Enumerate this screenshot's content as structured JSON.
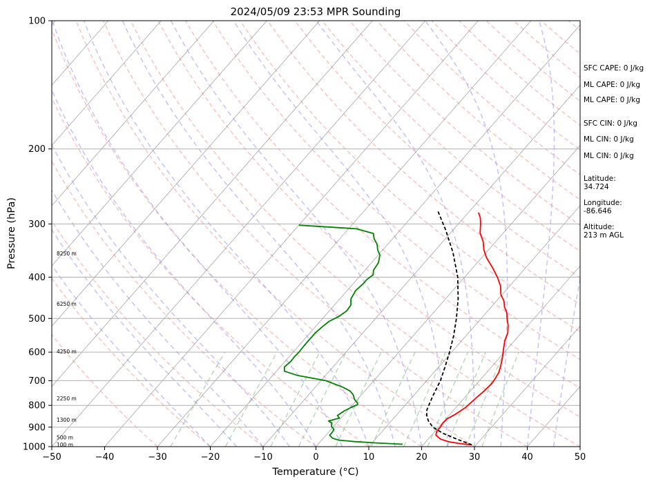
{
  "chart_data": {
    "type": "line",
    "title": "2024/05/09 23:53 MPR Sounding",
    "xlabel": "Temperature (°C)",
    "ylabel": "Pressure (hPa)",
    "xlim": [
      -50,
      50
    ],
    "ylim": [
      1000,
      100
    ],
    "y_scale": "log",
    "x_ticks": [
      -50,
      -40,
      -30,
      -20,
      -10,
      0,
      10,
      20,
      30,
      40,
      50
    ],
    "y_ticks": [
      1000,
      900,
      800,
      700,
      600,
      500,
      400,
      300,
      200,
      100
    ],
    "grid": true,
    "series": [
      {
        "color": "#ff0000",
        "pressure": [
          990,
          985,
          975,
          960,
          940,
          920,
          900,
          880,
          860,
          840,
          810,
          790,
          770,
          740,
          710,
          690,
          670,
          650,
          620,
          590,
          565,
          540,
          520,
          500,
          485,
          470,
          455,
          440,
          420,
          400,
          380,
          360,
          345,
          330,
          315,
          300,
          290,
          282
        ],
        "temperature": [
          29.2,
          27.2,
          24.5,
          22.3,
          20.8,
          20.3,
          20.3,
          20.1,
          20.2,
          21.0,
          21.8,
          22.0,
          22.2,
          22.6,
          22.8,
          22.6,
          22.3,
          21.7,
          20.6,
          19.3,
          18.2,
          17.4,
          16.3,
          14.9,
          13.9,
          12.5,
          11.4,
          9.8,
          8.3,
          6.2,
          3.7,
          0.9,
          -0.9,
          -2.4,
          -4.4,
          -5.8,
          -6.9,
          -8.1
        ]
      },
      {
        "color": "#008000",
        "pressure": [
          987,
          980,
          973,
          965,
          955,
          940,
          925,
          910,
          897,
          880,
          870,
          857,
          845,
          825,
          810,
          797,
          790,
          775,
          755,
          740,
          725,
          700,
          680,
          665,
          650,
          630,
          615,
          600,
          580,
          560,
          540,
          523,
          508,
          495,
          480,
          465,
          450,
          430,
          415,
          405,
          395,
          385,
          370,
          355,
          345,
          335,
          325,
          316,
          308,
          302
        ],
        "temperature": [
          16.0,
          10.8,
          6.5,
          3.2,
          1.7,
          0.7,
          0.7,
          0.5,
          -0.4,
          -0.9,
          -1.9,
          -0.3,
          -1.1,
          -0.6,
          0.1,
          0.9,
          0.6,
          -0.5,
          -1.6,
          -2.8,
          -4.8,
          -9.1,
          -15.4,
          -18.5,
          -19.2,
          -18.9,
          -19.0,
          -18.9,
          -19.0,
          -19.0,
          -19.0,
          -18.7,
          -18.3,
          -17.3,
          -16.7,
          -16.9,
          -17.9,
          -18.4,
          -18.1,
          -18.1,
          -17.7,
          -18.4,
          -18.7,
          -19.7,
          -21.0,
          -22.0,
          -23.5,
          -24.5,
          -28.5,
          -40.0
        ]
      },
      {
        "color": "#000000",
        "dashed": true,
        "pressure": [
          990,
          975,
          960,
          930,
          900,
          870,
          845,
          820,
          790,
          760,
          700,
          650,
          600,
          550,
          500,
          450,
          400,
          350,
          310,
          280
        ],
        "temperature": [
          29.2,
          27.3,
          25.4,
          21.8,
          18.9,
          17.0,
          15.8,
          14.9,
          14.3,
          13.7,
          12.6,
          11.2,
          9.6,
          7.7,
          5.3,
          2.4,
          -1.3,
          -6.3,
          -11.4,
          -16.0
        ]
      }
    ],
    "height_labels": [
      {
        "label": "100 m",
        "pressure": 988
      },
      {
        "label": "500 m",
        "pressure": 950
      },
      {
        "label": "1300 m",
        "pressure": 865
      },
      {
        "label": "2250 m",
        "pressure": 770
      },
      {
        "label": "4250 m",
        "pressure": 597
      },
      {
        "label": "6250 m",
        "pressure": 462
      },
      {
        "label": "8250 m",
        "pressure": 352
      }
    ],
    "side_text": {
      "sfc_cape": "SFC CAPE: 0 J/kg",
      "ml_cape_1": "ML CAPE: 0 J/kg",
      "ml_cape_2": "ML CAPE: 0 J/kg",
      "sfc_cin": "SFC CIN: 0 J/kg",
      "ml_cin_1": "ML CIN: 0 J/kg",
      "ml_cin_2": "ML CIN: 0 J/kg",
      "lat_label": "Latitude:",
      "lat_value": "34.724",
      "lon_label": "Longitude:",
      "lon_value": "-86.646",
      "alt_label": "Altitude:",
      "alt_value": "213 m AGL"
    },
    "colors": {
      "temperature": "#ff0000",
      "dewpoint": "#008000",
      "parcel": "#000000",
      "dry_adiabats": "#ff8080",
      "moist_adiabats": "#8080ff",
      "mixing_ratio": "#80c080",
      "isotherms": "#808080"
    }
  }
}
